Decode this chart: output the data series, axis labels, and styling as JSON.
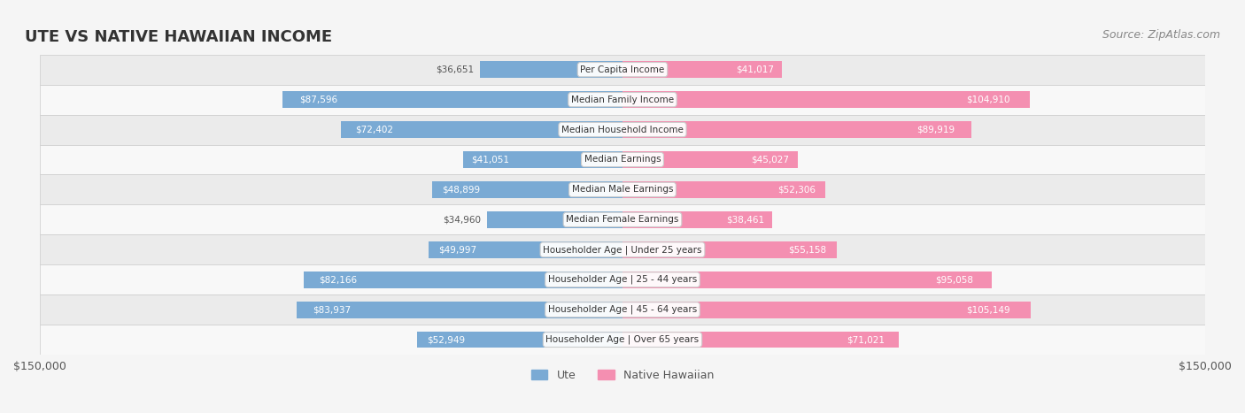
{
  "title": "UTE VS NATIVE HAWAIIAN INCOME",
  "source": "Source: ZipAtlas.com",
  "categories": [
    "Per Capita Income",
    "Median Family Income",
    "Median Household Income",
    "Median Earnings",
    "Median Male Earnings",
    "Median Female Earnings",
    "Householder Age | Under 25 years",
    "Householder Age | 25 - 44 years",
    "Householder Age | 45 - 64 years",
    "Householder Age | Over 65 years"
  ],
  "ute_values": [
    36651,
    87596,
    72402,
    41051,
    48899,
    34960,
    49997,
    82166,
    83937,
    52949
  ],
  "native_values": [
    41017,
    104910,
    89919,
    45027,
    52306,
    38461,
    55158,
    95058,
    105149,
    71021
  ],
  "ute_color": "#7aaad4",
  "native_color": "#f48fb1",
  "ute_color_dark": "#5b8ec4",
  "native_color_dark": "#e06090",
  "max_val": 150000,
  "bg_color": "#f5f5f5",
  "row_bg": "#ffffff",
  "row_alt_bg": "#f0f0f0",
  "title_color": "#333333",
  "label_color": "#555555",
  "value_color_outside": "#555555",
  "value_color_inside": "#ffffff"
}
